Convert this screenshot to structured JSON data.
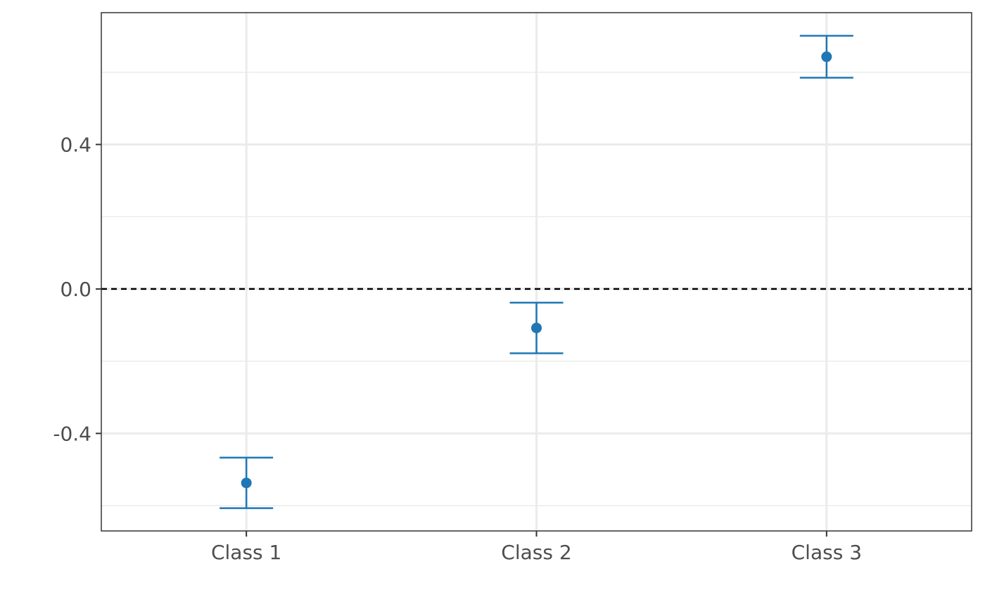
{
  "chart_data": {
    "type": "scatter",
    "title": "",
    "xlabel": "",
    "ylabel": "",
    "categories": [
      "Class 1",
      "Class 2",
      "Class 3"
    ],
    "series": [
      {
        "values": [
          -0.537,
          -0.108,
          0.643
        ],
        "ci_lower": [
          -0.607,
          -0.178,
          0.585
        ],
        "ci_upper": [
          -0.467,
          -0.038,
          0.701
        ]
      }
    ],
    "yticks": [
      -0.4,
      0.0,
      0.4
    ],
    "ytick_labels": [
      "-0.4",
      "0.0",
      "0.4"
    ],
    "ylim": [
      -0.67,
      0.765
    ],
    "reference_line": 0,
    "grid": true,
    "legend": "none",
    "colors": {
      "series": "#1f77b4",
      "grid": "#ebebeb",
      "reference": "#000000",
      "text": "#4d4d4d"
    }
  }
}
